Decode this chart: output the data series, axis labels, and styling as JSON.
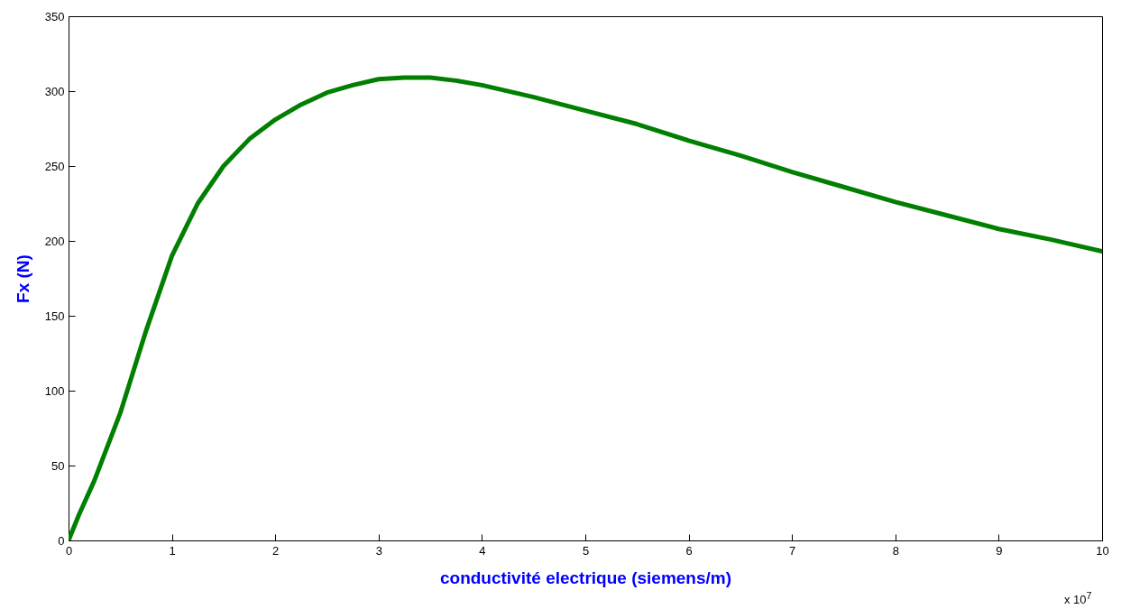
{
  "chart_data": {
    "type": "line",
    "xlabel": "conductivité electrique (siemens/m)",
    "ylabel": "Fx (N)",
    "annotations": [
      "x 10$^{7}$"
    ],
    "x": [
      0,
      0.1,
      0.25,
      0.5,
      0.75,
      1,
      1.25,
      1.5,
      1.75,
      2,
      2.25,
      2.5,
      2.75,
      3,
      3.25,
      3.5,
      3.75,
      4,
      4.5,
      5,
      5.5,
      6,
      6.5,
      7,
      7.5,
      8,
      8.5,
      9,
      9.5,
      10
    ],
    "series": [
      {
        "color": "#007f00",
        "values": [
          0,
          17,
          40,
          85,
          140,
          190,
          225,
          250,
          268,
          281,
          291,
          299,
          304,
          308,
          309,
          309,
          307,
          304,
          296,
          287,
          278,
          267,
          257,
          246,
          236,
          226,
          217,
          208,
          201,
          193
        ]
      }
    ],
    "xlim": [
      0,
      10
    ],
    "xticks": [
      0,
      1,
      2,
      3,
      4,
      5,
      6,
      7,
      8,
      9,
      10
    ],
    "ylim": [
      0,
      350
    ],
    "yticks": [
      0,
      50,
      100,
      150,
      200,
      250,
      300,
      350
    ],
    "grid": false,
    "marker": "none",
    "line_style": "solid"
  }
}
